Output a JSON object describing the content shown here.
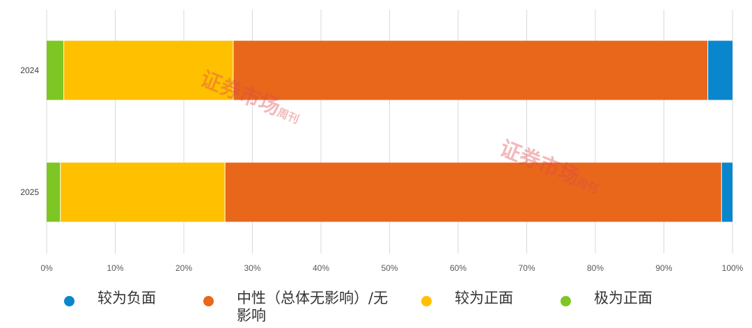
{
  "chart_data": {
    "type": "bar",
    "orientation": "horizontal",
    "stacked": true,
    "categories": [
      "2024",
      "2025"
    ],
    "series": [
      {
        "name": "极为正面",
        "color": "#7DC623",
        "values": [
          2.5,
          2.0
        ]
      },
      {
        "name": "较为正面",
        "color": "#FFC000",
        "values": [
          24.7,
          24.0
        ]
      },
      {
        "name": "中性（总体无影响）/无影响",
        "color": "#E8671B",
        "values": [
          69.2,
          72.4
        ]
      },
      {
        "name": "较为负面",
        "color": "#0A86CC",
        "values": [
          3.6,
          1.6
        ]
      }
    ],
    "xlim": [
      0,
      100
    ],
    "xticks": [
      "0%",
      "10%",
      "20%",
      "30%",
      "40%",
      "50%",
      "60%",
      "70%",
      "80%",
      "90%",
      "100%"
    ],
    "grid": "vertical",
    "title": "",
    "xlabel": "",
    "ylabel": ""
  },
  "legend": [
    {
      "label": "较为负面",
      "color": "#0A86CC"
    },
    {
      "label": "中性（总体无影响）/无影响",
      "color": "#E8671B"
    },
    {
      "label": "较为正面",
      "color": "#FFC000"
    },
    {
      "label": "极为正面",
      "color": "#7DC623"
    }
  ],
  "watermark": {
    "text": "证券市场",
    "subtext": "周刊"
  }
}
